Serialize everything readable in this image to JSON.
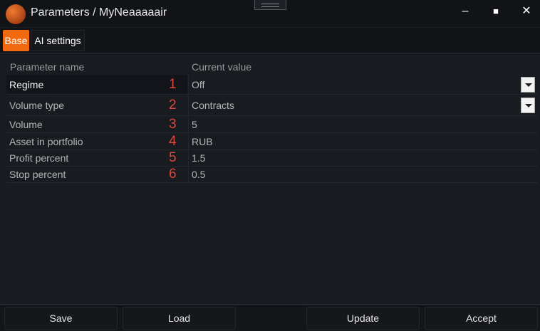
{
  "window": {
    "title": "Parameters / MyNeaaaaair",
    "minimize": "–",
    "maximize": "■",
    "close": "✕"
  },
  "tabs": [
    {
      "label": "Base",
      "active": true
    },
    {
      "label": "AI settings",
      "active": false
    }
  ],
  "table": {
    "headers": {
      "name": "Parameter name",
      "value": "Current value"
    },
    "rows": [
      {
        "num": "1",
        "name": "Regime",
        "value": "Off",
        "dropdown": true
      },
      {
        "num": "2",
        "name": "Volume type",
        "value": "Contracts",
        "dropdown": true
      },
      {
        "num": "3",
        "name": "Volume",
        "value": "5"
      },
      {
        "num": "4",
        "name": "Asset in portfolio",
        "value": "RUB"
      },
      {
        "num": "5",
        "name": "Profit percent",
        "value": "1.5"
      },
      {
        "num": "6",
        "name": "Stop percent",
        "value": "0.5"
      }
    ]
  },
  "footer": {
    "save": "Save",
    "load": "Load",
    "update": "Update",
    "accept": "Accept"
  },
  "colors": {
    "accent": "#f26a10",
    "marker": "#e0463a",
    "background": "#181b20"
  }
}
